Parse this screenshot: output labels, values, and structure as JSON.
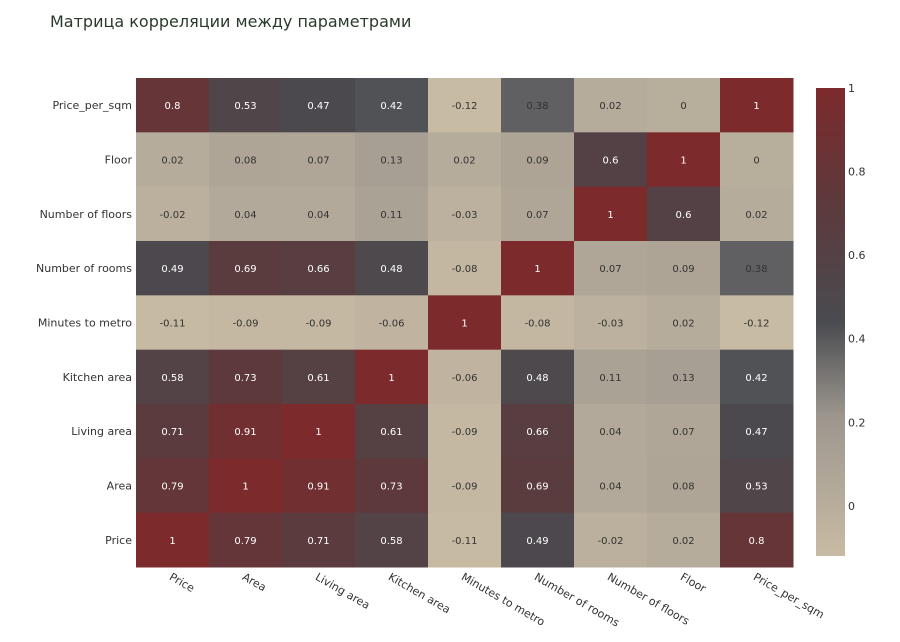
{
  "chart_data": {
    "type": "heatmap",
    "title": "Матрица корреляции между параметрами",
    "x_labels": [
      "Price",
      "Area",
      "Living area",
      "Kitchen area",
      "Minutes to metro",
      "Number of rooms",
      "Number of floors",
      "Floor",
      "Price_per_sqm"
    ],
    "y_labels_top_to_bottom": [
      "Price_per_sqm",
      "Floor",
      "Number of floors",
      "Number of rooms",
      "Minutes to metro",
      "Kitchen area",
      "Living area",
      "Area",
      "Price"
    ],
    "values": [
      [
        0.8,
        0.53,
        0.47,
        0.42,
        -0.12,
        0.38,
        0.02,
        0,
        1
      ],
      [
        0.02,
        0.08,
        0.07,
        0.13,
        0.02,
        0.09,
        0.6,
        1,
        0
      ],
      [
        -0.02,
        0.04,
        0.04,
        0.11,
        -0.03,
        0.07,
        1,
        0.6,
        0.02
      ],
      [
        0.49,
        0.69,
        0.66,
        0.48,
        -0.08,
        1,
        0.07,
        0.09,
        0.38
      ],
      [
        -0.11,
        -0.09,
        -0.09,
        -0.06,
        1,
        -0.08,
        -0.03,
        0.02,
        -0.12
      ],
      [
        0.58,
        0.73,
        0.61,
        1,
        -0.06,
        0.48,
        0.11,
        0.13,
        0.42
      ],
      [
        0.71,
        0.91,
        1,
        0.61,
        -0.09,
        0.66,
        0.04,
        0.07,
        0.47
      ],
      [
        0.79,
        1,
        0.91,
        0.73,
        -0.09,
        0.69,
        0.04,
        0.08,
        0.53
      ],
      [
        1,
        0.79,
        0.71,
        0.58,
        -0.11,
        0.49,
        -0.02,
        0.02,
        0.8
      ]
    ],
    "zmin": -0.12,
    "zmax": 1,
    "colorbar_ticks": [
      1,
      0.8,
      0.6,
      0.4,
      0.2,
      0
    ],
    "colorscale": [
      [
        0,
        "#c8bba4"
      ],
      [
        0.3,
        "#9c968e"
      ],
      [
        0.5,
        "#4a4b50"
      ],
      [
        0.75,
        "#5c3a3d"
      ],
      [
        1,
        "#7d2a2c"
      ]
    ]
  }
}
